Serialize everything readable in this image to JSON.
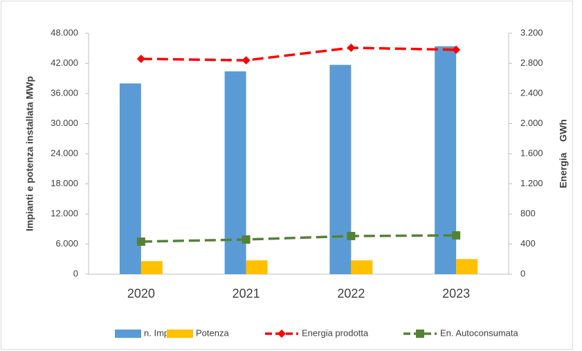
{
  "chart_data": {
    "type": "bar_line",
    "categories": [
      "2020",
      "2021",
      "2022",
      "2023"
    ],
    "ylabel": "Impianti e potenza installata MWp",
    "y2label": "Energia    GWh",
    "ylim": [
      0,
      48000
    ],
    "yticks": [
      0,
      {
        "value": 6000,
        "label": "6.000"
      },
      {
        "value": 12000,
        "label": "12.000"
      },
      {
        "value": 18000,
        "label": "18.000"
      },
      {
        "value": 24000,
        "label": "24.000"
      },
      {
        "value": 30000,
        "label": "30.000"
      },
      {
        "value": 36000,
        "label": "36.000"
      },
      {
        "value": 42000,
        "label": "42.000"
      },
      {
        "value": 48000,
        "label": "48.000"
      }
    ],
    "y2lim": [
      0,
      3200
    ],
    "y2ticks": [
      0,
      400,
      800,
      {
        "value": 1200,
        "label": "1.200"
      },
      {
        "value": 1600,
        "label": "1.600"
      },
      {
        "value": 2000,
        "label": "2.000"
      },
      {
        "value": 2400,
        "label": "2.400"
      },
      {
        "value": 2800,
        "label": "2.800"
      },
      {
        "value": 3200,
        "label": "3.200"
      }
    ],
    "grid": false,
    "legend": "bottom",
    "series": [
      {
        "name": "n. Impianti",
        "type": "bar",
        "color": "#5b9bd5",
        "values": [
          38000,
          40400,
          41700,
          45400
        ]
      },
      {
        "name": "Potenza",
        "type": "bar",
        "color": "#ffc000",
        "values": [
          2600,
          2750,
          2750,
          3000
        ]
      },
      {
        "name": "Energia prodotta",
        "type": "line",
        "axis": "y2",
        "color": "#ff0000",
        "marker": "diamond",
        "values": [
          2860,
          2840,
          3007,
          2980
        ]
      },
      {
        "name": "En. Autoconsumata",
        "type": "line",
        "axis": "y2",
        "color": "#548235",
        "marker": "square",
        "values": [
          432,
          460,
          506,
          515
        ]
      }
    ]
  }
}
